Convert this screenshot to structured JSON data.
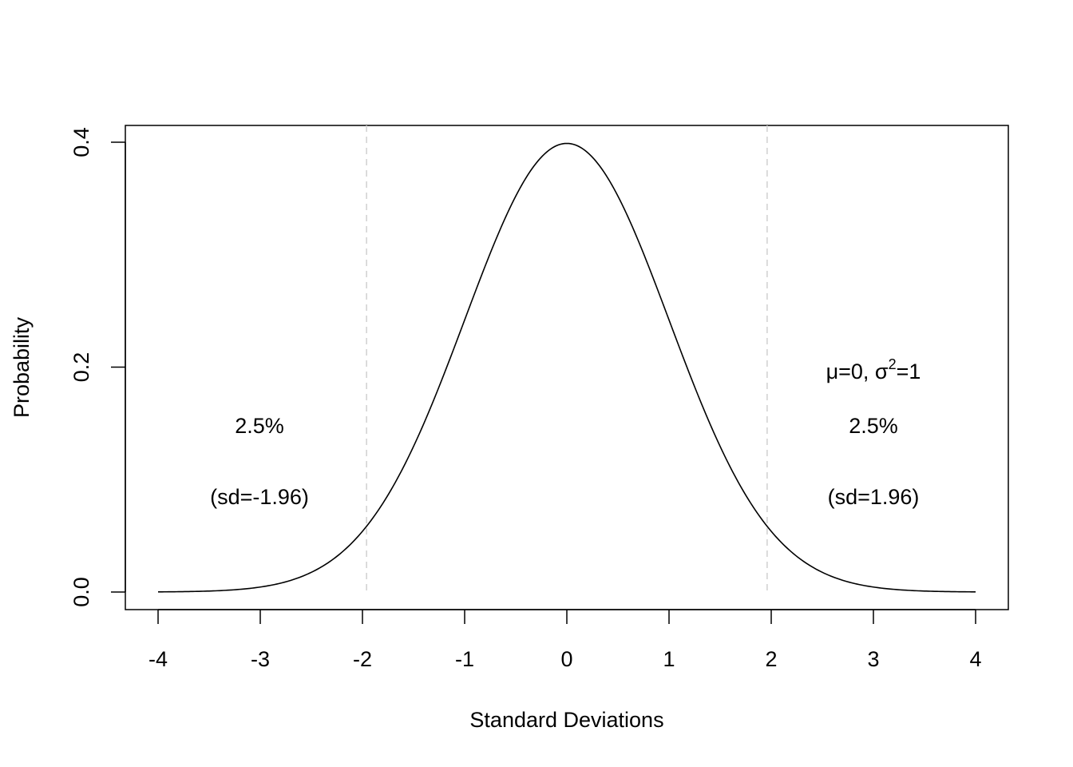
{
  "chart_data": {
    "type": "line",
    "title": "",
    "xlabel": "Standard Deviations",
    "ylabel": "Probability",
    "xlim": [
      -4,
      4
    ],
    "ylim": [
      0,
      0.4
    ],
    "grid": false,
    "legend": "none",
    "x_ticks": [
      -4,
      -3,
      -2,
      -1,
      0,
      1,
      2,
      3,
      4
    ],
    "x_tick_labels": [
      "-4",
      "-3",
      "-2",
      "-1",
      "0",
      "1",
      "2",
      "3",
      "4"
    ],
    "y_ticks": [
      0.0,
      0.2,
      0.4
    ],
    "y_tick_labels": [
      "0.0",
      "0.2",
      "0.4"
    ],
    "series": [
      {
        "distribution": "normal",
        "mean": 0,
        "variance": 1,
        "x": [
          -4,
          -3.5,
          -3,
          -2.5,
          -2,
          -1.96,
          -1.5,
          -1,
          -0.5,
          0,
          0.5,
          1,
          1.5,
          1.96,
          2,
          2.5,
          3,
          3.5,
          4
        ],
        "y": [
          0.0001,
          0.0009,
          0.0044,
          0.0175,
          0.054,
          0.0584,
          0.1295,
          0.242,
          0.3521,
          0.3989,
          0.3521,
          0.242,
          0.1295,
          0.0584,
          0.054,
          0.0175,
          0.0044,
          0.0009,
          0.0001
        ],
        "color": "#000000"
      }
    ],
    "reference_lines": [
      {
        "x": -1.96,
        "style": "dashed",
        "color": "#d3d3d3"
      },
      {
        "x": 1.96,
        "style": "dashed",
        "color": "#d3d3d3"
      }
    ],
    "annotations": {
      "left_pct": "2.5%",
      "left_sd": "(sd=-1.96)",
      "right_params_mu": "μ=0, σ",
      "right_params_exp": "2",
      "right_params_tail": "=1",
      "right_pct": "2.5%",
      "right_sd": "(sd=1.96)"
    }
  }
}
